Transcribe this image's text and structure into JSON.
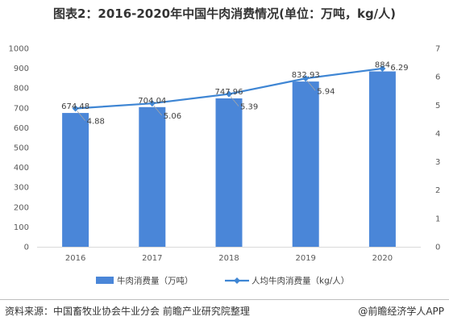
{
  "title": "图表2：2016-2020年中国牛肉消费情况(单位：万吨，kg/人)",
  "chart_data": {
    "type": "bar",
    "categories": [
      "2016",
      "2017",
      "2018",
      "2019",
      "2020"
    ],
    "series": [
      {
        "name": "牛肉消费量（万吨）",
        "type": "bar",
        "axis": "left",
        "color": "#4a86d8",
        "values": [
          674.48,
          704.04,
          747.96,
          832.93,
          884
        ],
        "labels": [
          "674.48",
          "704.04",
          "747.96",
          "832.93",
          "884"
        ]
      },
      {
        "name": "人均牛肉消费量（kg/人）",
        "type": "line",
        "axis": "right",
        "color": "#3f86d4",
        "values": [
          4.88,
          5.06,
          5.39,
          5.94,
          6.29
        ],
        "labels": [
          "4.88",
          "5.06",
          "5.39",
          "5.94",
          "6.29"
        ]
      }
    ],
    "y_left": {
      "min": 0,
      "max": 1000,
      "step": 100,
      "ticks": [
        "0",
        "100",
        "200",
        "300",
        "400",
        "500",
        "600",
        "700",
        "800",
        "900",
        "1000"
      ]
    },
    "y_right": {
      "min": 0,
      "max": 7,
      "step": 1,
      "ticks": [
        "0",
        "1",
        "2",
        "3",
        "4",
        "5",
        "6",
        "7"
      ]
    },
    "grid": false,
    "legend_position": "bottom"
  },
  "footer": {
    "source": "资料来源：中国畜牧业协会牛业分会 前瞻产业研究院整理",
    "brand": "@前瞻经济学人APP"
  }
}
